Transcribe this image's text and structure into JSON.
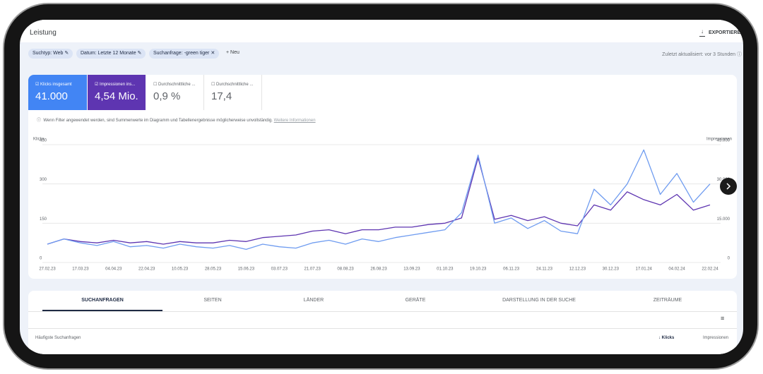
{
  "header": {
    "title": "Leistung",
    "export": "EXPORTIEREN"
  },
  "filters": [
    "Suchtyp: Web",
    "Datum: Letzte 12 Monate",
    "Suchanfrage: -green tiger"
  ],
  "new_filter": "Neu",
  "updated": "Zuletzt aktualisiert: vor 3 Stunden",
  "metrics": [
    {
      "label": "Klicks insgesamt",
      "value": "41.000"
    },
    {
      "label": "Impressionen ins...",
      "value": "4,54 Mio."
    },
    {
      "label": "Durchschnittliche ...",
      "value": "0,9 %"
    },
    {
      "label": "Durchschnittliche ...",
      "value": "17,4"
    }
  ],
  "notice": {
    "text": "Wenn Filter angewendet werden, sind Summenwerte im Diagramm und Tabellenergebnisse möglicherweise unvollständig.",
    "link": "Weitere Informationen"
  },
  "chart_data": {
    "type": "line",
    "categories": [
      "27.02.23",
      null,
      "17.03.23",
      null,
      "04.04.23",
      null,
      "22.04.23",
      null,
      "10.05.23",
      null,
      "28.05.23",
      null,
      "15.06.23",
      null,
      "03.07.23",
      null,
      "21.07.23",
      null,
      "08.08.23",
      null,
      "26.08.23",
      null,
      "13.09.23",
      null,
      "01.10.23",
      null,
      "19.10.23",
      null,
      "06.11.23",
      null,
      "24.11.23",
      null,
      "12.12.23",
      null,
      "30.12.23",
      null,
      "17.01.24",
      null,
      "04.02.24",
      null,
      "22.02.24"
    ],
    "series": [
      {
        "name": "Klicks",
        "color": "#6f9cf0",
        "values": [
          70,
          90,
          75,
          65,
          80,
          60,
          65,
          55,
          70,
          60,
          55,
          65,
          50,
          70,
          60,
          55,
          75,
          85,
          70,
          90,
          80,
          95,
          105,
          115,
          125,
          190,
          410,
          150,
          170,
          130,
          160,
          120,
          110,
          280,
          220,
          300,
          430,
          260,
          340,
          230,
          300
        ]
      },
      {
        "name": "Impressionen",
        "color": "#5e35b1",
        "axis": "y2",
        "values": [
          7000,
          9000,
          8000,
          7500,
          8500,
          7500,
          8000,
          7000,
          8000,
          7500,
          7500,
          8500,
          8000,
          9500,
          10000,
          10500,
          12000,
          12500,
          11000,
          12500,
          12500,
          13500,
          13500,
          14500,
          15000,
          17000,
          40000,
          16500,
          18000,
          16000,
          17500,
          15000,
          14000,
          22000,
          20000,
          27000,
          24000,
          22000,
          26000,
          20000,
          22000
        ]
      }
    ],
    "ylim": [
      0,
      450
    ],
    "yticks": [
      0,
      150,
      300,
      450
    ],
    "y2lim": [
      0,
      45000
    ],
    "y2ticks": [
      0,
      {
        "value": 15000,
        "label": "15.000"
      },
      {
        "value": 30000,
        "label": "30.000"
      },
      {
        "value": 45000,
        "label": "45.000"
      }
    ],
    "grid": true
  },
  "tabs": [
    "SUCHANFRAGEN",
    "SEITEN",
    "LÄNDER",
    "GERÄTE",
    "DARSTELLUNG IN DER SUCHE",
    "ZEITRÄUME"
  ],
  "table": {
    "columns": [
      "Häufigste Suchanfragen",
      "Klicks",
      "Impressionen"
    ]
  }
}
